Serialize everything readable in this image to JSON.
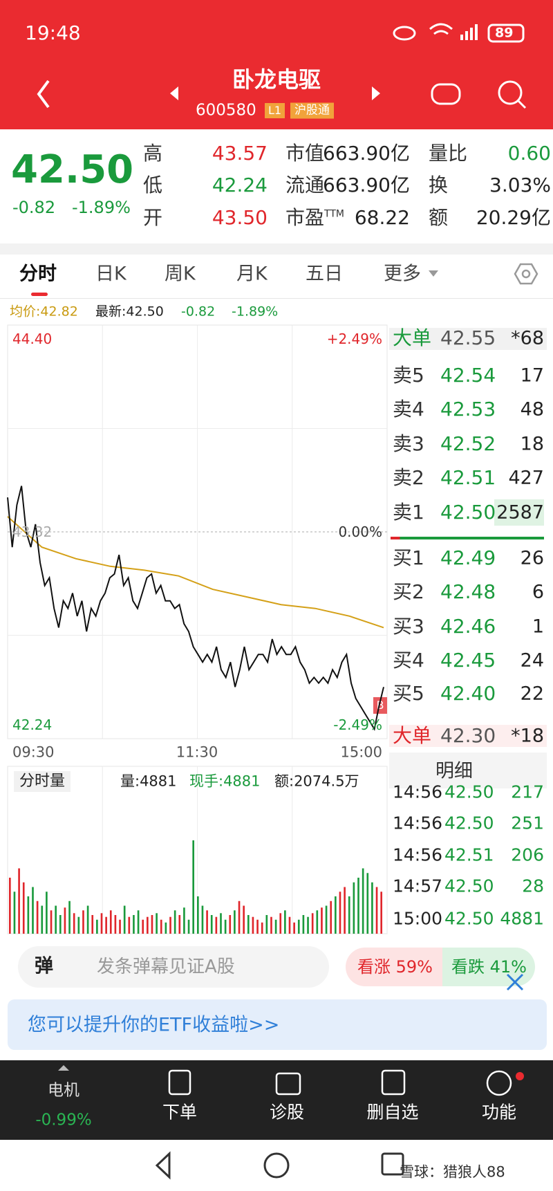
{
  "status": {
    "time": "19:48",
    "battery": "89"
  },
  "header": {
    "title": "卧龙电驱",
    "code": "600580",
    "level": "L1",
    "tag": "沪股通"
  },
  "quote": {
    "price": "42.50",
    "change": "-0.82",
    "change_pct": "-1.89%",
    "columns": [
      [
        {
          "label": "高",
          "value": "43.57",
          "tone": "up"
        },
        {
          "label": "低",
          "value": "42.24",
          "tone": "down"
        },
        {
          "label": "开",
          "value": "43.50",
          "tone": "up"
        }
      ],
      [
        {
          "label": "市值",
          "value": "663.90亿"
        },
        {
          "label": "流通",
          "value": "663.90亿"
        },
        {
          "label": "市盈",
          "sup": "TTM",
          "value": "68.22"
        }
      ],
      [
        {
          "label": "量比",
          "value": "0.60",
          "tone": "down"
        },
        {
          "label": "换",
          "value": "3.03%"
        },
        {
          "label": "额",
          "value": "20.29亿"
        }
      ]
    ]
  },
  "tabs": [
    "分时",
    "日K",
    "周K",
    "月K",
    "五日",
    "更多"
  ],
  "info": {
    "avg": "均价:42.82",
    "latest": "最新:42.50",
    "change": "-0.82",
    "change_pct": "-1.89%"
  },
  "chart": {
    "type": "line",
    "x_labels": [
      "09:30",
      "11:30",
      "15:00"
    ],
    "ylim": [
      42.24,
      44.4
    ],
    "yticks": [
      {
        "value": 44.4,
        "label": "44.40"
      },
      {
        "value": 43.32,
        "label": "43.32"
      },
      {
        "value": 42.24,
        "label": "42.24"
      }
    ],
    "y2lim": [
      -2.49,
      2.49
    ],
    "y2ticks": [
      {
        "value": 2.49,
        "label": "+2.49%"
      },
      {
        "value": 0,
        "label": "0.00%"
      },
      {
        "value": -2.49,
        "label": "-2.49%"
      }
    ],
    "price_color": "#111111",
    "avg_color": "#d4a017",
    "up_color": "#e0262b",
    "down_color": "#1a9a3c",
    "prices": [
      43.5,
      43.24,
      43.46,
      43.56,
      43.32,
      43.24,
      43.36,
      43.16,
      43.04,
      43.08,
      42.92,
      42.82,
      42.96,
      42.92,
      43.0,
      42.88,
      42.96,
      42.8,
      42.92,
      42.88,
      42.96,
      43.0,
      43.08,
      43.1,
      43.2,
      43.04,
      43.08,
      42.96,
      42.92,
      43.0,
      43.08,
      43.1,
      43.0,
      43.04,
      42.96,
      42.96,
      42.92,
      42.94,
      42.84,
      42.8,
      42.72,
      42.68,
      42.64,
      42.68,
      42.64,
      42.72,
      42.6,
      42.56,
      42.64,
      42.51,
      42.6,
      42.72,
      42.6,
      42.64,
      42.68,
      42.68,
      42.64,
      42.76,
      42.68,
      42.72,
      42.68,
      42.68,
      42.72,
      42.64,
      42.6,
      42.53,
      42.56,
      42.53,
      42.56,
      42.53,
      42.6,
      42.56,
      42.64,
      42.68,
      42.53,
      42.45,
      42.41,
      42.37,
      42.33,
      42.29,
      42.41,
      42.51
    ],
    "avg": [
      43.4,
      43.24,
      43.18,
      43.14,
      43.12,
      43.09,
      43.02,
      42.98,
      42.94,
      42.92,
      42.88,
      42.82
    ],
    "volumes": [
      60,
      45,
      70,
      55,
      40,
      50,
      35,
      30,
      45,
      25,
      30,
      20,
      28,
      35,
      22,
      18,
      25,
      30,
      20,
      15,
      22,
      18,
      25,
      20,
      15,
      30,
      18,
      20,
      25,
      15,
      18,
      20,
      22,
      15,
      12,
      18,
      25,
      20,
      28,
      15,
      100,
      40,
      30,
      25,
      20,
      18,
      22,
      15,
      20,
      25,
      35,
      30,
      20,
      18,
      15,
      12,
      20,
      18,
      15,
      22,
      25,
      18,
      12,
      15,
      20,
      18,
      22,
      25,
      28,
      30,
      35,
      40,
      45,
      50,
      40,
      55,
      60,
      70,
      65,
      55,
      50,
      45
    ]
  },
  "order_book": {
    "big_top": {
      "label": "大单",
      "price": "42.55",
      "qty": "*68"
    },
    "asks": [
      {
        "label": "卖5",
        "price": "42.54",
        "qty": "17"
      },
      {
        "label": "卖4",
        "price": "42.53",
        "qty": "48"
      },
      {
        "label": "卖3",
        "price": "42.52",
        "qty": "18"
      },
      {
        "label": "卖2",
        "price": "42.51",
        "qty": "427"
      },
      {
        "label": "卖1",
        "price": "42.50",
        "qty": "2587"
      }
    ],
    "bids": [
      {
        "label": "买1",
        "price": "42.49",
        "qty": "26"
      },
      {
        "label": "买2",
        "price": "42.48",
        "qty": "6"
      },
      {
        "label": "买3",
        "price": "42.46",
        "qty": "1"
      },
      {
        "label": "买4",
        "price": "42.45",
        "qty": "24"
      },
      {
        "label": "买5",
        "price": "42.40",
        "qty": "22"
      }
    ],
    "big_bottom": {
      "label": "大单",
      "price": "42.30",
      "qty": "*18"
    }
  },
  "trades": {
    "title": "明细",
    "rows": [
      [
        "14:56",
        "42.50",
        "217"
      ],
      [
        "14:56",
        "42.50",
        "251"
      ],
      [
        "14:56",
        "42.51",
        "206"
      ],
      [
        "14:57",
        "42.50",
        "28"
      ],
      [
        "15:00",
        "42.50",
        "4881"
      ]
    ]
  },
  "volume_header": {
    "label": "分时量",
    "vol": "量:4881",
    "hand": "现手:4881",
    "amount": "额:2074.5万"
  },
  "danmu": {
    "icon": "弹",
    "placeholder": "发条弹幕见证A股",
    "bull": "看涨 59%",
    "bear": "看跌 41%"
  },
  "banner": "您可以提升你的ETF收益啦>>",
  "bottom_nav": {
    "sector": "电机",
    "sector_change": "-0.99%",
    "items": [
      "下单",
      "诊股",
      "删自选",
      "功能"
    ]
  },
  "watermark": "雪球：猎狼人88"
}
